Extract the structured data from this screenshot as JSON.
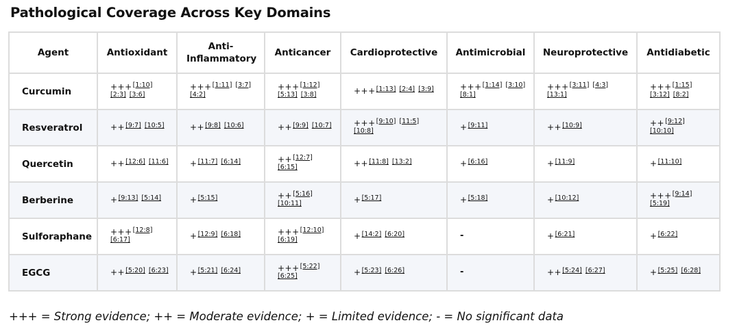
{
  "title": "Pathological Coverage Across Key Domains",
  "columns": [
    "Agent",
    "Antioxidant",
    "Anti-Inflammatory",
    "Anticancer",
    "Cardioprotective",
    "Antimicrobial",
    "Neuroprotective",
    "Antidiabetic"
  ],
  "rows": [
    {
      "agent": "Curcumin",
      "cells": [
        {
          "level": "+++",
          "cites": [
            "[1:10]",
            "[2:3]",
            "[3:6]"
          ]
        },
        {
          "level": "+++",
          "cites": [
            "[1:11]",
            "[3:7]",
            "[4:2]"
          ]
        },
        {
          "level": "+++",
          "cites": [
            "[1:12]",
            "[5:13]",
            "[3:8]"
          ]
        },
        {
          "level": "+++",
          "cites": [
            "[1:13]",
            "[2:4]",
            "[3:9]"
          ]
        },
        {
          "level": "+++",
          "cites": [
            "[1:14]",
            "[3:10]",
            "[8:1]"
          ]
        },
        {
          "level": "+++",
          "cites": [
            "[3:11]",
            "[4:3]",
            "[13:1]"
          ]
        },
        {
          "level": "+++",
          "cites": [
            "[1:15]",
            "[3:12]",
            "[8:2]"
          ]
        }
      ]
    },
    {
      "agent": "Resveratrol",
      "cells": [
        {
          "level": "++",
          "cites": [
            "[9:7]",
            "[10:5]"
          ]
        },
        {
          "level": "++",
          "cites": [
            "[9:8]",
            "[10:6]"
          ]
        },
        {
          "level": "++",
          "cites": [
            "[9:9]",
            "[10:7]"
          ]
        },
        {
          "level": "+++",
          "cites": [
            "[9:10]",
            "[11:5]",
            "[10:8]"
          ]
        },
        {
          "level": "+",
          "cites": [
            "[9:11]"
          ]
        },
        {
          "level": "++",
          "cites": [
            "[10:9]"
          ]
        },
        {
          "level": "++",
          "cites": [
            "[9:12]",
            "[10:10]"
          ]
        }
      ]
    },
    {
      "agent": "Quercetin",
      "cells": [
        {
          "level": "++",
          "cites": [
            "[12:6]",
            "[11:6]"
          ]
        },
        {
          "level": "+",
          "cites": [
            "[11:7]",
            "[6:14]"
          ]
        },
        {
          "level": "++",
          "cites": [
            "[12:7]",
            "[6:15]"
          ]
        },
        {
          "level": "++",
          "cites": [
            "[11:8]",
            "[13:2]"
          ]
        },
        {
          "level": "+",
          "cites": [
            "[6:16]"
          ]
        },
        {
          "level": "+",
          "cites": [
            "[11:9]"
          ]
        },
        {
          "level": "+",
          "cites": [
            "[11:10]"
          ]
        }
      ]
    },
    {
      "agent": "Berberine",
      "cells": [
        {
          "level": "+",
          "cites": [
            "[9:13]",
            "[5:14]"
          ]
        },
        {
          "level": "+",
          "cites": [
            "[5:15]"
          ]
        },
        {
          "level": "++",
          "cites": [
            "[5:16]",
            "[10:11]"
          ]
        },
        {
          "level": "+",
          "cites": [
            "[5:17]"
          ]
        },
        {
          "level": "+",
          "cites": [
            "[5:18]"
          ]
        },
        {
          "level": "+",
          "cites": [
            "[10:12]"
          ]
        },
        {
          "level": "+++",
          "cites": [
            "[9:14]",
            "[5:19]"
          ]
        }
      ]
    },
    {
      "agent": "Sulforaphane",
      "cells": [
        {
          "level": "+++",
          "cites": [
            "[12:8]",
            "[6:17]"
          ]
        },
        {
          "level": "+",
          "cites": [
            "[12:9]",
            "[6:18]"
          ]
        },
        {
          "level": "+++",
          "cites": [
            "[12:10]",
            "[6:19]"
          ]
        },
        {
          "level": "+",
          "cites": [
            "[14:2]",
            "[6:20]"
          ]
        },
        {
          "level": "-",
          "cites": []
        },
        {
          "level": "+",
          "cites": [
            "[6:21]"
          ]
        },
        {
          "level": "+",
          "cites": [
            "[6:22]"
          ]
        }
      ]
    },
    {
      "agent": "EGCG",
      "cells": [
        {
          "level": "++",
          "cites": [
            "[5:20]",
            "[6:23]"
          ]
        },
        {
          "level": "+",
          "cites": [
            "[5:21]",
            "[6:24]"
          ]
        },
        {
          "level": "+++",
          "cites": [
            "[5:22]",
            "[6:25]"
          ]
        },
        {
          "level": "+",
          "cites": [
            "[5:23]",
            "[6:26]"
          ]
        },
        {
          "level": "-",
          "cites": []
        },
        {
          "level": "++",
          "cites": [
            "[5:24]",
            "[6:27]"
          ]
        },
        {
          "level": "+",
          "cites": [
            "[5:25]",
            "[6:28]"
          ]
        }
      ]
    }
  ],
  "legend": "+++ = Strong evidence; ++ = Moderate evidence; + = Limited evidence; - = No significant data"
}
